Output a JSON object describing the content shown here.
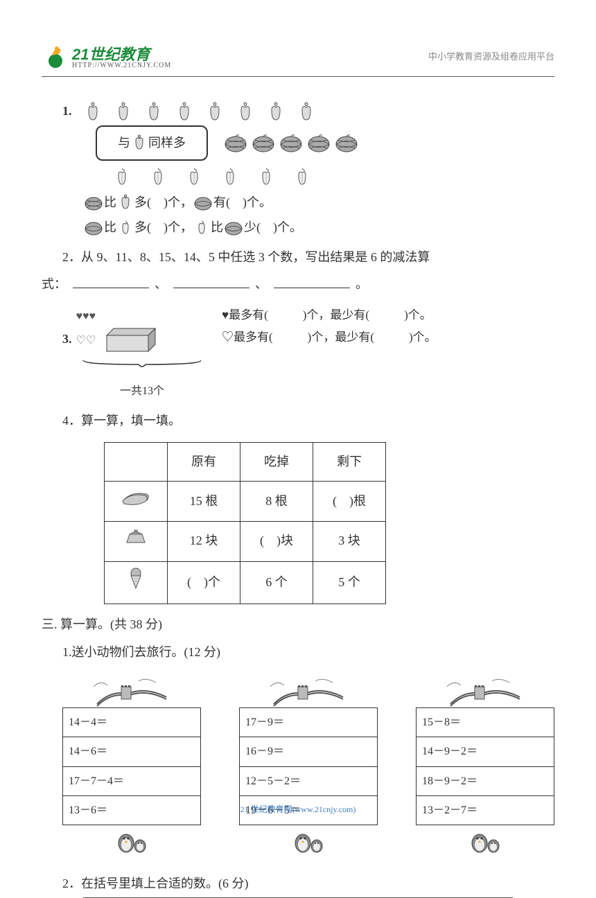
{
  "header": {
    "logo_text": "21世纪教育",
    "logo_url": "HTTP://WWW.21CNJY.COM",
    "right_text": "中小学教育资源及组卷应用平台",
    "logo_color": "#1a8c3a"
  },
  "q1": {
    "label": "1.",
    "apple_count": 8,
    "same_box_text_prefix": "与",
    "same_box_text_suffix": "同样多",
    "melon_count": 5,
    "peach_count": 6,
    "line1_a": "比",
    "line1_b": "多(　)个，",
    "line1_c": "有(　)个。",
    "line2_a": "比",
    "line2_b": "多(　)个，",
    "line2_c": "比",
    "line2_d": "少(　)个。"
  },
  "q2": {
    "text_a": "2．从 9、11、8、15、14、5 中任选 3 个数，写出结果是 6 的减法算",
    "text_b": "式：",
    "text_c": "、",
    "text_d": "、",
    "text_e": "。"
  },
  "q3": {
    "label": "3.",
    "caption": "一共13个",
    "row1_a": "♥最多有(",
    "row1_b": ")个，最少有(",
    "row1_c": ")个。",
    "row2_a": "♡最多有(",
    "row2_b": ")个，最少有(",
    "row2_c": ")个。"
  },
  "q4": {
    "title": "4．算一算，填一填。",
    "headers": [
      "",
      "原有",
      "吃掉",
      "剩下"
    ],
    "rows": [
      {
        "icon": "sausage",
        "c1": "15 根",
        "c2": "8 根",
        "c3": "(　)根"
      },
      {
        "icon": "cake",
        "c1": "12 块",
        "c2": "(　)块",
        "c3": "3 块"
      },
      {
        "icon": "icecream",
        "c1": "(　)个",
        "c2": "6 个",
        "c3": "5 个"
      }
    ]
  },
  "section3": {
    "title": "三. 算一算。(共 38 分)",
    "sub1": "1.送小动物们去旅行。(12 分)",
    "cols": [
      [
        "14－4＝",
        "14－6＝",
        "17－7－4＝",
        "13－6＝"
      ],
      [
        "17－9＝",
        "16－9＝",
        "12－5－2＝",
        "19－6－5＝"
      ],
      [
        "15－8＝",
        "14－9－2＝",
        "18－9－2＝",
        "13－2－7＝"
      ]
    ],
    "sub2": "2．在括号里填上合适的数。(6 分)"
  },
  "footer": {
    "text": "21 世纪教育网(www.21cnjy.com)",
    "color": "#3a7cc4"
  },
  "colors": {
    "text": "#333333",
    "border": "#333333",
    "icon_fill": "#999999",
    "icon_stroke": "#555555"
  }
}
